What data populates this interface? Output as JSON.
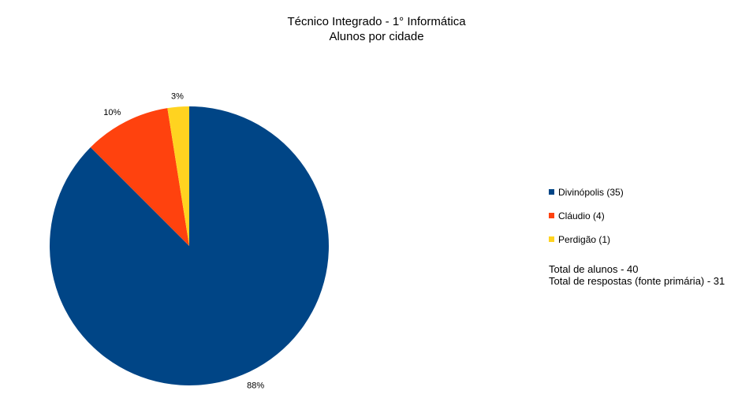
{
  "chart_data": {
    "type": "pie",
    "title": "Técnico Integrado - 1° Informática",
    "subtitle": "Alunos por cidade",
    "categories": [
      "Divinópolis (35)",
      "Cláudio (4)",
      "Perdigão (1)"
    ],
    "values": [
      35,
      4,
      1
    ],
    "data_labels": [
      "88%",
      "10%",
      "3%"
    ],
    "colors": [
      "#004586",
      "#ff420e",
      "#ffd320"
    ],
    "legend_position": "right"
  },
  "notes": {
    "total_alunos": "Total de alunos - 40",
    "total_respostas": "Total de respostas (fonte primária) - 31"
  }
}
